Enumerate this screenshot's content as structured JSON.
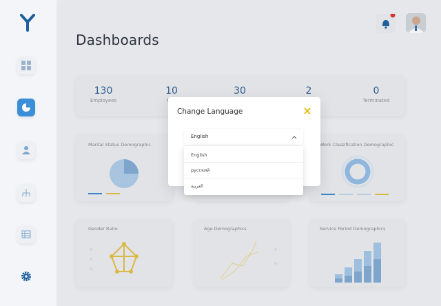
{
  "header": {
    "title": "Dashboards"
  },
  "stats": [
    {
      "value": 130,
      "label": "Employees"
    },
    {
      "value": 10,
      "label": "New"
    },
    {
      "value": 30
    },
    {
      "value": 2
    },
    {
      "value": 0,
      "label": "Terminated"
    }
  ],
  "cards": [
    "Marital Status Demographic",
    "Work Classification Demographic",
    "Gender Ratio",
    "Age Demographics",
    "Service Period Demographics"
  ],
  "modal": {
    "title": "Change Language",
    "selected": "English",
    "options": [
      "English",
      "русский",
      "العربية"
    ]
  }
}
